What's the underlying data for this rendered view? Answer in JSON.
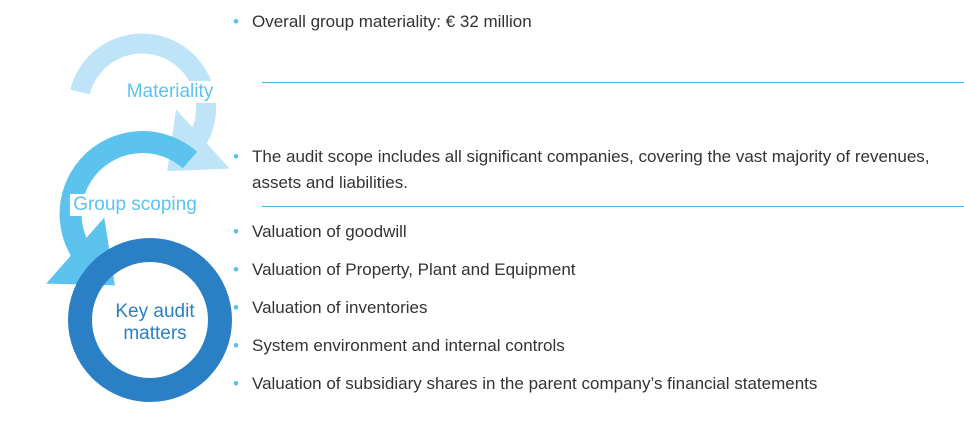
{
  "nodes": [
    {
      "label": [
        "Materiality"
      ]
    },
    {
      "label": [
        "Group scoping"
      ]
    },
    {
      "label": [
        "Key audit",
        "matters"
      ]
    }
  ],
  "sections": [
    {
      "bullets": [
        "Overall group materiality: € 32 million"
      ]
    },
    {
      "bullets": [
        "The audit scope includes all significant companies, covering the vast majority of revenues, assets and liabilities."
      ]
    },
    {
      "bullets": [
        "Valuation of goodwill",
        "Valuation of Property, Plant and Equipment",
        "Valuation of inventories",
        "System environment and internal controls",
        "Valuation of subsidiary shares in the parent company’s financial statements"
      ]
    }
  ]
}
